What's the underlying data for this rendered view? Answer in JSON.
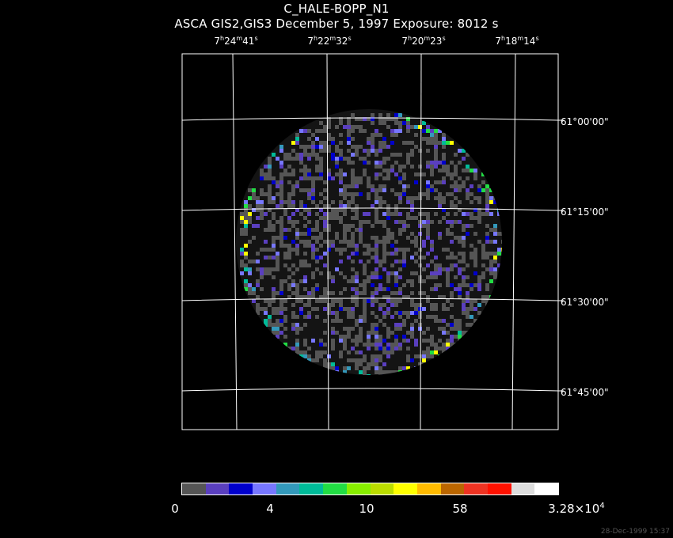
{
  "title": "C_HALE-BOPP_N1",
  "subtitle": "ASCA GIS2,GIS3 December 5, 1997 Exposure: 8012 s",
  "ra_labels": [
    {
      "h": "7",
      "m": "24",
      "s": "41"
    },
    {
      "h": "7",
      "m": "22",
      "s": "32"
    },
    {
      "h": "7",
      "m": "20",
      "s": "23"
    },
    {
      "h": "7",
      "m": "18",
      "s": "14"
    }
  ],
  "dec_labels": [
    "61°00'00\"",
    "61°15'00\"",
    "61°30'00\"",
    "61°45'00\""
  ],
  "colorbar": {
    "colors": [
      "#555555",
      "#5a3fbf",
      "#0000cc",
      "#7777ff",
      "#3399bb",
      "#00bb99",
      "#22dd44",
      "#88ee00",
      "#bbdd00",
      "#ffff00",
      "#ffbb00",
      "#bb6600",
      "#ee3322",
      "#ff1100",
      "#dddddd",
      "#ffffff"
    ],
    "labels": [
      "0",
      "4",
      "10",
      "58"
    ],
    "max_mantissa": "3.28×10",
    "max_exponent": "4"
  },
  "timestamp": "28-Dec-1999 15:37"
}
